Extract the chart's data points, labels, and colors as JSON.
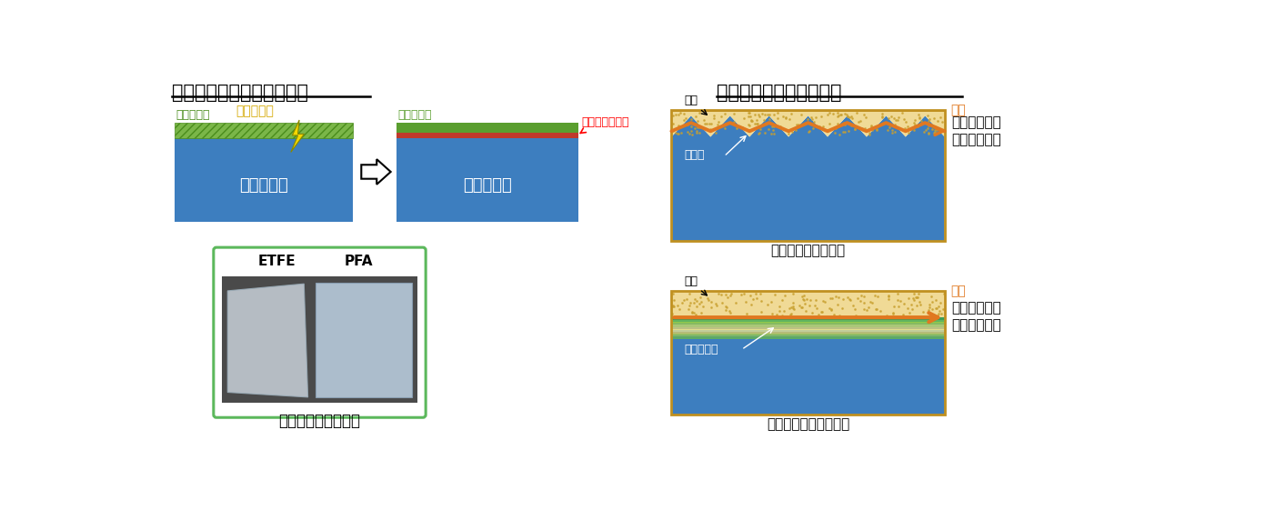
{
  "bg_color": "#ffffff",
  "left_title": "開発した表面改質プロセス",
  "right_title": "高周波回路への応用展望",
  "uv_label": "紫外光照射",
  "organic_label": "有機金属膜",
  "inorganic_label": "無機金属膜",
  "fluorine_label1": "フッ素樹脂",
  "fluorine_label2": "フッ素樹脂",
  "high_bond_label": "高強度接合界面",
  "photo_title": "表面改質フッ素樹脂",
  "etfe_label": "ETFE",
  "pfa_label": "PFA",
  "conventional_title": "従来のアンカー接合",
  "smooth_title": "本手法による平滑接合",
  "rough_label": "粗化面",
  "smooth_label": "表面改質面",
  "conductor_label1": "導体",
  "conductor_label2": "導体",
  "current_label1": "電流",
  "current_label2": "電流",
  "signal_long": "信号経路：長",
  "loss_large": "伝送損失：大",
  "signal_short": "信号経路：短",
  "loss_small": "伝送損失：小",
  "fluorine_blue": "#3d7ebf",
  "organic_green": "#7ab648",
  "organic_stripe_green": "#4a8c1c",
  "inorganic_green": "#5a9e2f",
  "red_layer": "#c0392b",
  "conductor_tan": "#d4a843",
  "orange_arrow": "#e07820",
  "lightning_yellow": "#f5d800",
  "photo_bg": "#5a5a5a",
  "photo_border": "#5cb85c"
}
